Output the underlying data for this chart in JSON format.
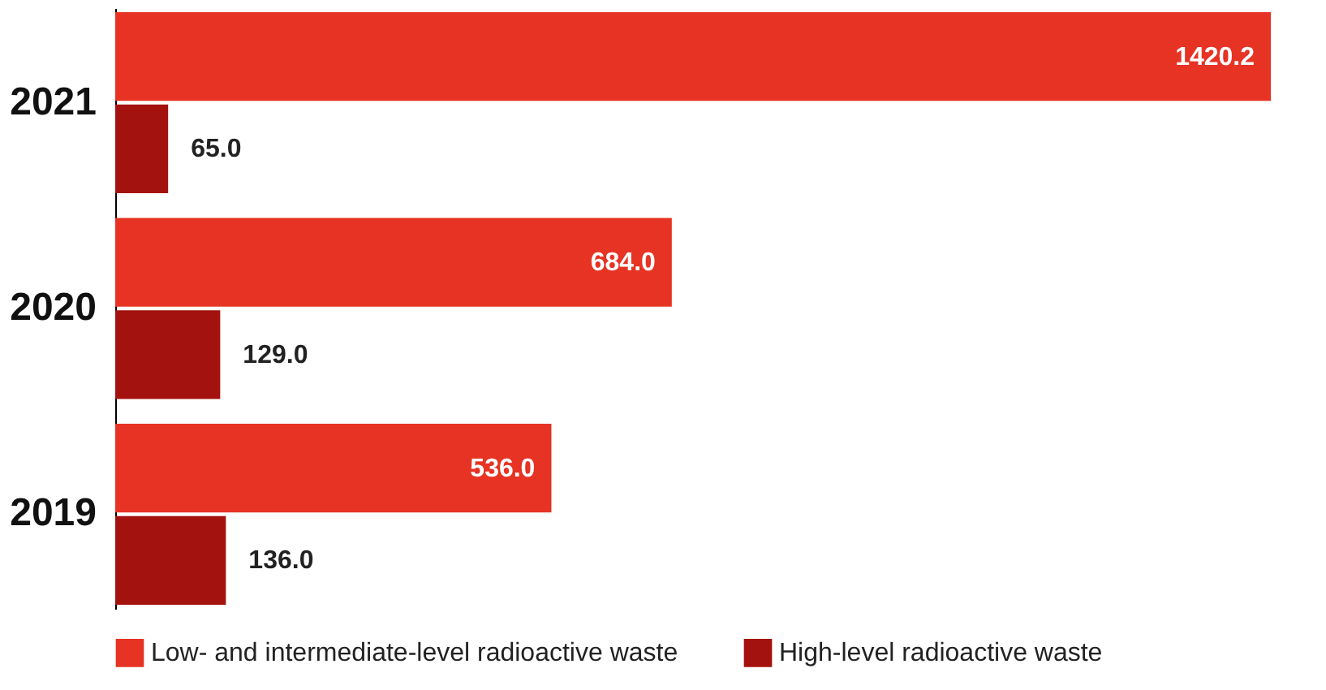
{
  "chart_data": {
    "type": "bar",
    "orientation": "horizontal",
    "categories": [
      "2021",
      "2020",
      "2019"
    ],
    "series": [
      {
        "name": "Low- and intermediate-level radioactive waste",
        "color": "#e63323",
        "values": [
          1420.2,
          684.0,
          536.0
        ],
        "value_labels": [
          "1420.2",
          "684.0",
          "536.0"
        ]
      },
      {
        "name": "High-level radioactive waste",
        "color": "#a3120e",
        "values": [
          65.0,
          129.0,
          136.0
        ],
        "value_labels": [
          "65.0",
          "129.0",
          "136.0"
        ]
      }
    ],
    "tick_labels": "y",
    "grid": false,
    "legend": "bottom"
  }
}
